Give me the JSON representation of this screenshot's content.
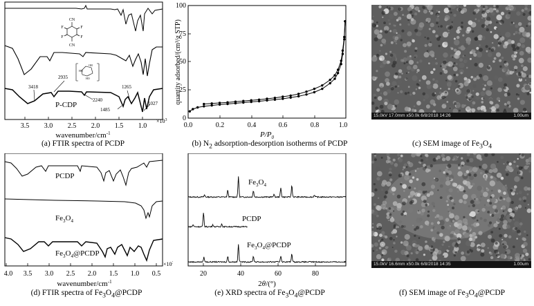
{
  "panels": {
    "a": {
      "caption": "(a) FTIR spectra of PCDP",
      "xlabel": "wavenumber/cm",
      "xlabel_sup": "-1",
      "multiplier": "×10",
      "multiplier_sup": "3",
      "xticks": [
        "3.5",
        "3.0",
        "2.5",
        "2.0",
        "1.5",
        "1.0"
      ],
      "annotations": [
        "3418",
        "2935",
        "2240",
        "1265",
        "1485",
        "1027"
      ],
      "curve_label": "P-CDP"
    },
    "b": {
      "caption_pre": "(b) N",
      "caption_sub": "2",
      "caption_post": " adsorption-desorption isotherms of PCDP",
      "ylabel": "quantity adsorbed/(cm³/g STP)",
      "xlabel_main": "P/P",
      "xlabel_sub": "0",
      "yticks": [
        "0",
        "25",
        "50",
        "75",
        "100"
      ],
      "xticks": [
        "0.0",
        "0.2",
        "0.4",
        "0.6",
        "0.8",
        "1.0"
      ]
    },
    "c": {
      "caption_pre": "(c) SEM image of Fe",
      "caption_sub1": "3",
      "caption_mid": "O",
      "caption_sub2": "4",
      "bar_text": "15.0kV 17.0mm x50.0k 6/8/2018 14:26",
      "scale_text": "1.00um"
    },
    "d": {
      "caption_pre": "(d) FTIR spectra of Fe",
      "caption_sub1": "3",
      "caption_mid": "O",
      "caption_sub2": "4",
      "caption_post": "@PCDP",
      "xlabel": "wavenumber/cm",
      "xlabel_sup": "-1",
      "multiplier": "×10",
      "multiplier_sup": "3",
      "xticks": [
        "4.0",
        "3.5",
        "3.0",
        "2.5",
        "2.0",
        "1.5",
        "1.0",
        "0.5"
      ],
      "labels": {
        "pcdp": "PCDP",
        "fe_pre": "Fe",
        "fe_sub1": "3",
        "fe_mid": "O",
        "fe_sub2": "4",
        "fepc_post": "@PCDP"
      }
    },
    "e": {
      "caption_pre": "(e) XRD spectra of Fe",
      "caption_sub1": "3",
      "caption_mid": "O",
      "caption_sub2": "4",
      "caption_post": "@PCDP",
      "xlabel_pre": "2",
      "xlabel_theta": "θ",
      "xlabel_post": "/(°)",
      "xticks": [
        "20",
        "40",
        "60",
        "80"
      ],
      "labels": {
        "fe_pre": "Fe",
        "fe_sub1": "3",
        "fe_mid": "O",
        "fe_sub2": "4",
        "pcdp": "PCDP",
        "fepc_post": "@PCDP"
      }
    },
    "f": {
      "caption_pre": "(f) SEM image of Fe",
      "caption_sub1": "3",
      "caption_mid": "O",
      "caption_sub2": "4",
      "caption_post": "@PCDP",
      "bar_text": "15.0kV 16.6mm x50.0k 6/8/2018 14:35",
      "scale_text": "1.00um"
    }
  },
  "chart_data": [
    {
      "id": "b",
      "type": "line",
      "title": "N2 adsorption-desorption isotherms of PCDP",
      "xlabel": "P/P0",
      "ylabel": "quantity adsorbed/(cm3/g STP)",
      "xlim": [
        0,
        1.0
      ],
      "ylim": [
        0,
        100
      ],
      "series": [
        {
          "name": "adsorption",
          "x": [
            0.01,
            0.03,
            0.06,
            0.1,
            0.15,
            0.2,
            0.25,
            0.3,
            0.35,
            0.4,
            0.45,
            0.5,
            0.55,
            0.6,
            0.65,
            0.7,
            0.75,
            0.8,
            0.85,
            0.9,
            0.93,
            0.95,
            0.97,
            0.98,
            0.99,
            0.995
          ],
          "values": [
            6,
            8,
            9.5,
            10.5,
            11.3,
            12,
            12.6,
            13.2,
            13.8,
            14.4,
            15,
            15.7,
            16.4,
            17.2,
            18.2,
            19.4,
            21,
            23,
            26,
            31,
            35,
            40,
            48,
            57,
            70,
            86
          ]
        },
        {
          "name": "desorption",
          "x": [
            0.995,
            0.99,
            0.98,
            0.97,
            0.95,
            0.93,
            0.9,
            0.85,
            0.8,
            0.75,
            0.7,
            0.65,
            0.6,
            0.55,
            0.5,
            0.45,
            0.4,
            0.35,
            0.3,
            0.25,
            0.2,
            0.15,
            0.1
          ],
          "values": [
            86,
            72,
            60,
            51,
            43,
            38,
            34,
            29,
            26,
            23.5,
            21.5,
            20,
            19,
            18,
            17.2,
            16.4,
            15.8,
            15.2,
            14.6,
            14,
            13.5,
            13,
            12.5
          ]
        }
      ]
    },
    {
      "id": "e",
      "type": "line",
      "title": "XRD spectra of Fe3O4@PCDP",
      "xlabel": "2θ/(°)",
      "xlim": [
        10,
        90
      ],
      "series": [
        {
          "name": "Fe3O4",
          "peaks": [
            [
              18.3,
              3
            ],
            [
              30.1,
              10
            ],
            [
              35.5,
              30
            ],
            [
              43.1,
              9
            ],
            [
              53.5,
              4
            ],
            [
              57,
              13
            ],
            [
              62.6,
              17
            ],
            [
              74,
              3
            ]
          ]
        },
        {
          "name": "PCDP",
          "xmax": 40,
          "peaks": [
            [
              17.8,
              20
            ],
            [
              12.5,
              3
            ],
            [
              22.5,
              3
            ],
            [
              27,
              4
            ]
          ]
        },
        {
          "name": "Fe3O4@PCDP",
          "peaks": [
            [
              18,
              7
            ],
            [
              30.1,
              8
            ],
            [
              35.5,
              26
            ],
            [
              43.1,
              8
            ],
            [
              57,
              9
            ],
            [
              62.6,
              12
            ]
          ]
        }
      ]
    }
  ]
}
